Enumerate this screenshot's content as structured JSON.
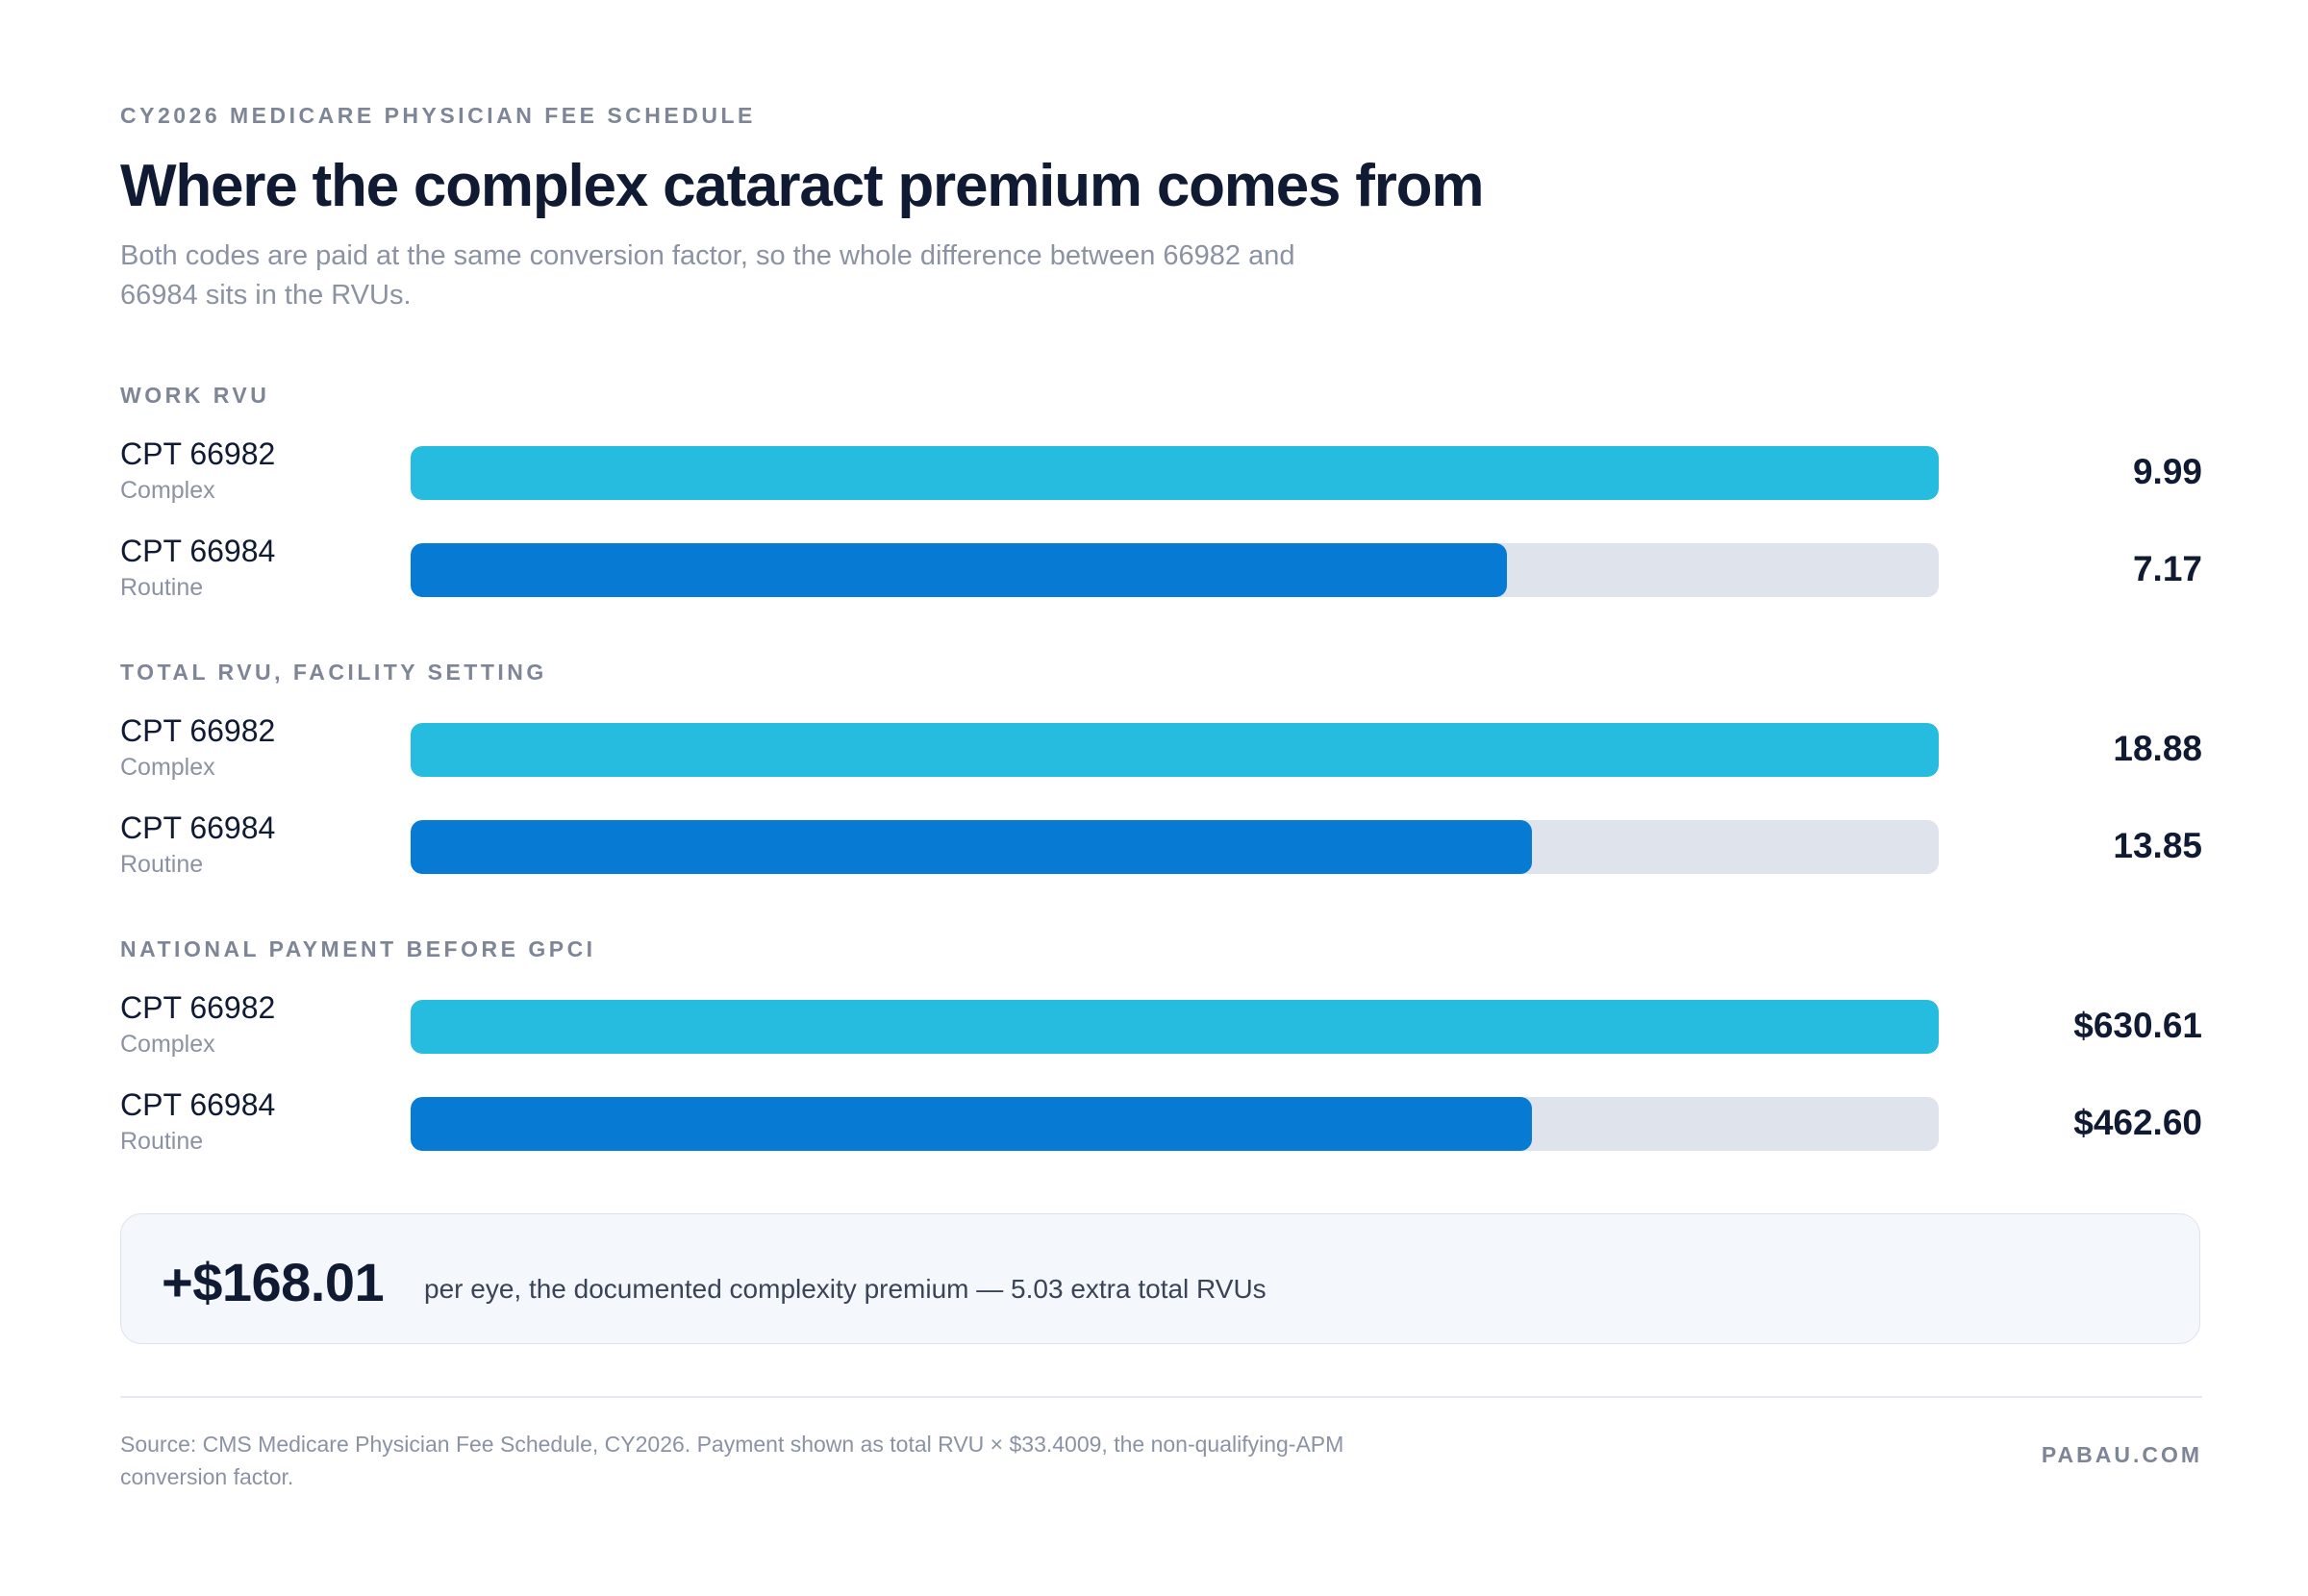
{
  "header": {
    "eyebrow": "CY2026 MEDICARE PHYSICIAN FEE SCHEDULE",
    "title": "Where the complex cataract premium comes from",
    "subtitle": "Both codes are paid at the same conversion factor, so the whole difference between 66982 and 66984 sits in the RVUs."
  },
  "chart_data": {
    "type": "bar",
    "orientation": "horizontal",
    "colors": {
      "complex": "#25bce0",
      "routine": "#077ad4",
      "track": "#dfe3ec"
    },
    "panels": [
      {
        "label": "WORK RVU",
        "max": 9.99,
        "bars": [
          {
            "code": "CPT 66982",
            "desc": "Complex",
            "value": 9.99,
            "display": "9.99",
            "variant": "complex"
          },
          {
            "code": "CPT 66984",
            "desc": "Routine",
            "value": 7.17,
            "display": "7.17",
            "variant": "routine"
          }
        ]
      },
      {
        "label": "TOTAL RVU, FACILITY SETTING",
        "max": 18.88,
        "bars": [
          {
            "code": "CPT 66982",
            "desc": "Complex",
            "value": 18.88,
            "display": "18.88",
            "variant": "complex"
          },
          {
            "code": "CPT 66984",
            "desc": "Routine",
            "value": 13.85,
            "display": "13.85",
            "variant": "routine"
          }
        ]
      },
      {
        "label": "NATIONAL PAYMENT BEFORE GPCI",
        "max": 630.61,
        "bars": [
          {
            "code": "CPT 66982",
            "desc": "Complex",
            "value": 630.61,
            "display": "$630.61",
            "variant": "complex"
          },
          {
            "code": "CPT 66984",
            "desc": "Routine",
            "value": 462.6,
            "display": "$462.60",
            "variant": "routine"
          }
        ]
      }
    ]
  },
  "callout": {
    "value": "+$168.01",
    "text": "per eye, the documented complexity premium — 5.03 extra total RVUs"
  },
  "footer": {
    "source": "Source: CMS Medicare Physician Fee Schedule, CY2026. Payment shown as total RVU × $33.4009, the non-qualifying-APM conversion factor.",
    "brand": "PABAU.COM"
  }
}
